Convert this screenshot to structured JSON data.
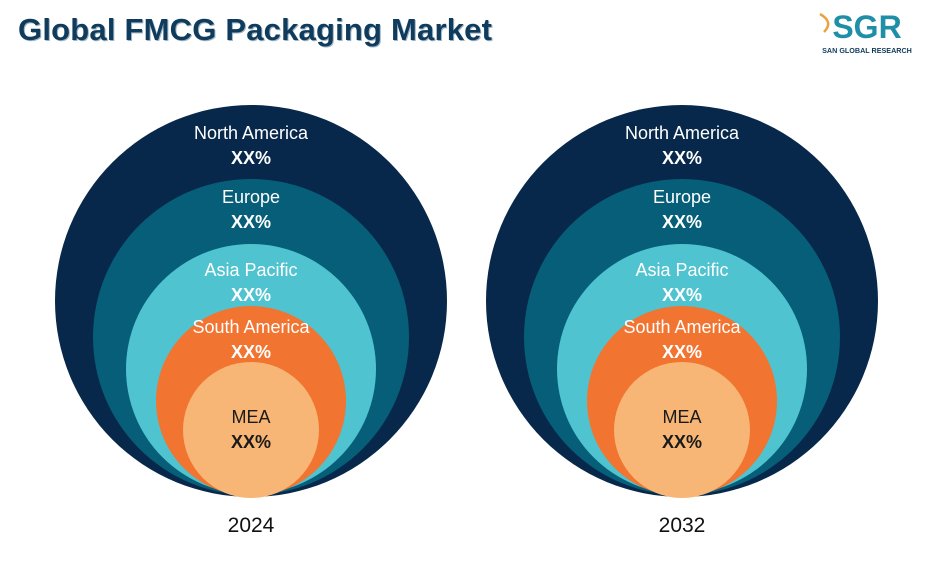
{
  "header": {
    "title": "Global FMCG Packaging Market"
  },
  "logo": {
    "mark": "SGR",
    "tagline": "SAN GLOBAL RESEARCH",
    "mark_color": "#1f8fa8",
    "accent": "#e8a33a"
  },
  "chart_data": [
    {
      "type": "nested-bubble",
      "year": "2024",
      "rings": [
        {
          "label": "North America",
          "value": "XX%",
          "color": "#07284a"
        },
        {
          "label": "Europe",
          "value": "XX%",
          "color": "#065e78"
        },
        {
          "label": "Asia Pacific",
          "value": "XX%",
          "color": "#4fc3cf"
        },
        {
          "label": "South America",
          "value": "XX%",
          "color": "#f27431"
        },
        {
          "label": "MEA",
          "value": "XX%",
          "color": "#f8b676"
        }
      ]
    },
    {
      "type": "nested-bubble",
      "year": "2032",
      "rings": [
        {
          "label": "North America",
          "value": "XX%",
          "color": "#07284a"
        },
        {
          "label": "Europe",
          "value": "XX%",
          "color": "#065e78"
        },
        {
          "label": "Asia Pacific",
          "value": "XX%",
          "color": "#4fc3cf"
        },
        {
          "label": "South America",
          "value": "XX%",
          "color": "#f27431"
        },
        {
          "label": "MEA",
          "value": "XX%",
          "color": "#f8b676"
        }
      ]
    }
  ]
}
